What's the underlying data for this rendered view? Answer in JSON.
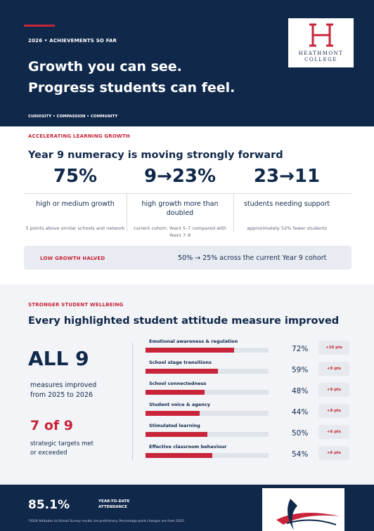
{
  "header": {
    "eyebrow": "2026 • ACHIEVEMENTS SO FAR",
    "title_line1": "Growth you can see.",
    "title_line2": "Progress students can feel.",
    "values": "CURIOSITY  •  COMPASSION  •  COMMUNITY",
    "logo_line1": "HEATHMONT",
    "logo_line2": "COLLEGE"
  },
  "learning": {
    "eyebrow": "ACCELERATING LEARNING GROWTH",
    "heading": "Year 9 numeracy is moving strongly forward",
    "stats": [
      {
        "figure": "75%",
        "label": "high or medium growth",
        "note": "5 points above similar schools and network"
      },
      {
        "figure": "9→23%",
        "label": "high growth more than doubled",
        "note": "current cohort: Years 5–7 compared with Years 7–9"
      },
      {
        "figure": "23→11",
        "label": "students needing support",
        "note": "approximately 52% fewer students"
      }
    ],
    "callout_label": "LOW GROWTH HALVED",
    "callout_text": "50% → 25% across the current Year 9 cohort"
  },
  "wellbeing": {
    "eyebrow": "STRONGER STUDENT WELLBEING",
    "heading": "Every highlighted student attitude measure improved",
    "big_figure": "ALL 9",
    "big_caption": "measures improved from 2025 to 2026",
    "second_figure": "7 of 9",
    "second_caption": "strategic targets met or exceeded",
    "measures": [
      {
        "name": "Emotional awareness & regulation",
        "value": 72,
        "label": "72%",
        "change": "+10 pts"
      },
      {
        "name": "School stage transitions",
        "value": 59,
        "label": "59%",
        "change": "+9 pts"
      },
      {
        "name": "School connectedness",
        "value": 48,
        "label": "48%",
        "change": "+9 pts"
      },
      {
        "name": "Student voice & agency",
        "value": 44,
        "label": "44%",
        "change": "+9 pts"
      },
      {
        "name": "Stimulated learning",
        "value": 50,
        "label": "50%",
        "change": "+6 pts"
      },
      {
        "name": "Effective classroom behaviour",
        "value": 54,
        "label": "54%",
        "change": "+6 pts"
      }
    ]
  },
  "footer": {
    "figure": "85.1%",
    "label": "YEAR-TO-DATE ATTENDANCE",
    "footnote": "*2026 Attitudes to School Survey results are preliminary. Percentage-point changes are from 2025."
  }
}
